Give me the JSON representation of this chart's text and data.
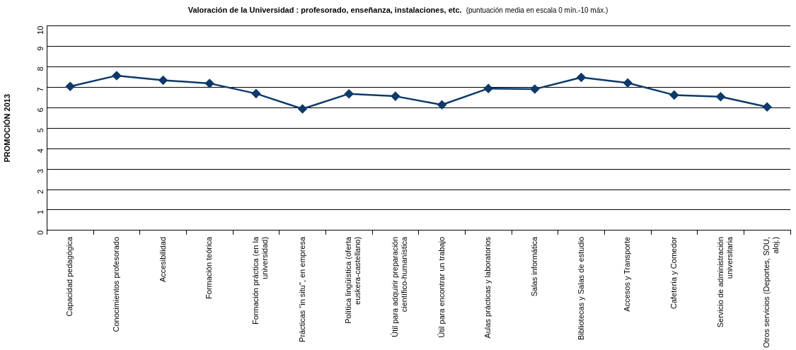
{
  "chart_data": {
    "type": "line",
    "title": "Valoración de la Universidad : profesorado, enseñanza, instalaciones, etc.",
    "subtitle": "(puntuación media en escala 0 mín.-10 máx.)",
    "ylabel": "PROMOCIÓN 2013",
    "categories": [
      "Capacidad pedagógica",
      "Conocimientos profesorado",
      "Accesibilidad",
      "Formación teórica",
      "Formación práctica (en la universidad)",
      "Prácticas \"in situ\", en empresa",
      "Política lingüística (oferta euskera-castellano)",
      "Útil para adquirir preparación científico-humanística",
      "Útil para encontrar un trabajo",
      "Aulas prácticas y laboratorios",
      "Salas informática",
      "Bibliotecas y Salas de estudio",
      "Accesos y Transporte",
      "Cafetería y Comedor",
      "Servicio de administración universitaria",
      "Otros servicios (Deportes, SOU, aloj.)"
    ],
    "series": [
      {
        "color": "#0d3a6a",
        "values": [
          7.04,
          7.57,
          7.34,
          7.19,
          6.69,
          5.94,
          6.68,
          6.56,
          6.14,
          6.94,
          6.91,
          7.48,
          7.21,
          6.62,
          6.54,
          6.04
        ]
      }
    ],
    "ylim": [
      0,
      10
    ],
    "yticks": [
      0,
      1,
      2,
      3,
      4,
      5,
      6,
      7,
      8,
      9,
      10
    ],
    "grid": "y",
    "legend": false,
    "marker": "diamond",
    "line_style": "solid"
  }
}
